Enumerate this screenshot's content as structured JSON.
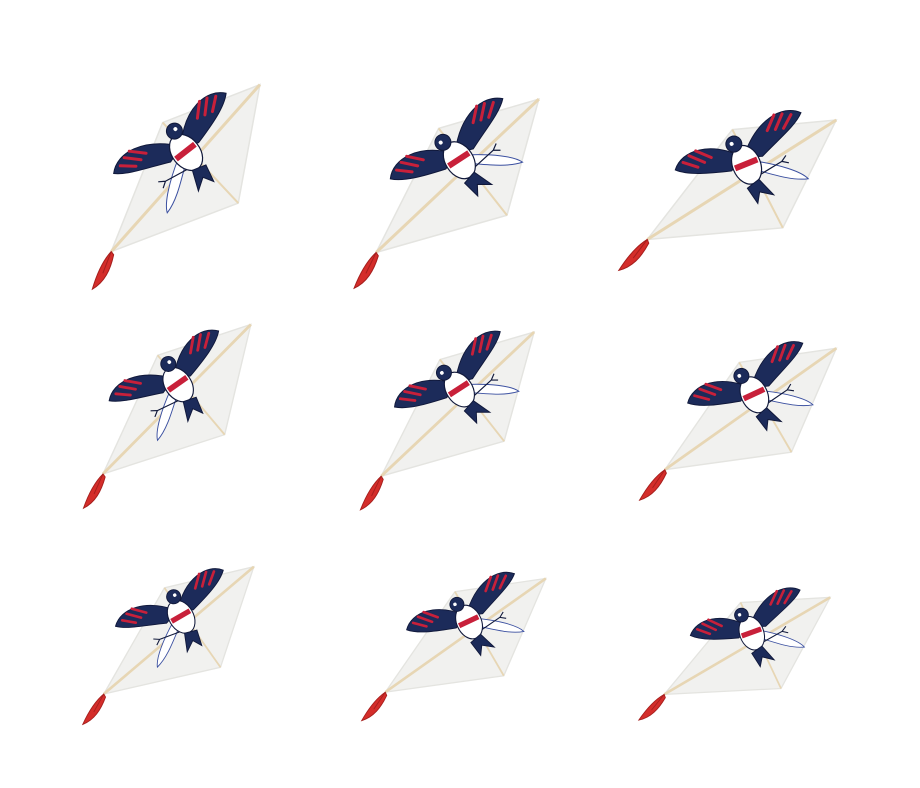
{
  "colors": {
    "background": "#ffffff",
    "sail": "#f1f1ef",
    "sail_edge": "#e4e4e0",
    "spar": "#e7d6b4",
    "tail": "#d42d2a",
    "tail_shadow": "#a51f1d",
    "bird_navy": "#1c2b5a",
    "bird_red": "#c8203a",
    "bird_blue": "#3a4fa0",
    "bird_white": "#ffffff",
    "bird_outline": "#10183a"
  },
  "kites": [
    {
      "id": "kite-1",
      "subject": "bird-kite"
    },
    {
      "id": "kite-2",
      "subject": "bird-kite"
    },
    {
      "id": "kite-3",
      "subject": "bird-kite"
    },
    {
      "id": "kite-4",
      "subject": "bird-kite"
    },
    {
      "id": "kite-5",
      "subject": "bird-kite"
    },
    {
      "id": "kite-6",
      "subject": "bird-kite"
    },
    {
      "id": "kite-7",
      "subject": "bird-kite"
    },
    {
      "id": "kite-8",
      "subject": "bird-kite"
    },
    {
      "id": "kite-9",
      "subject": "bird-kite"
    }
  ]
}
